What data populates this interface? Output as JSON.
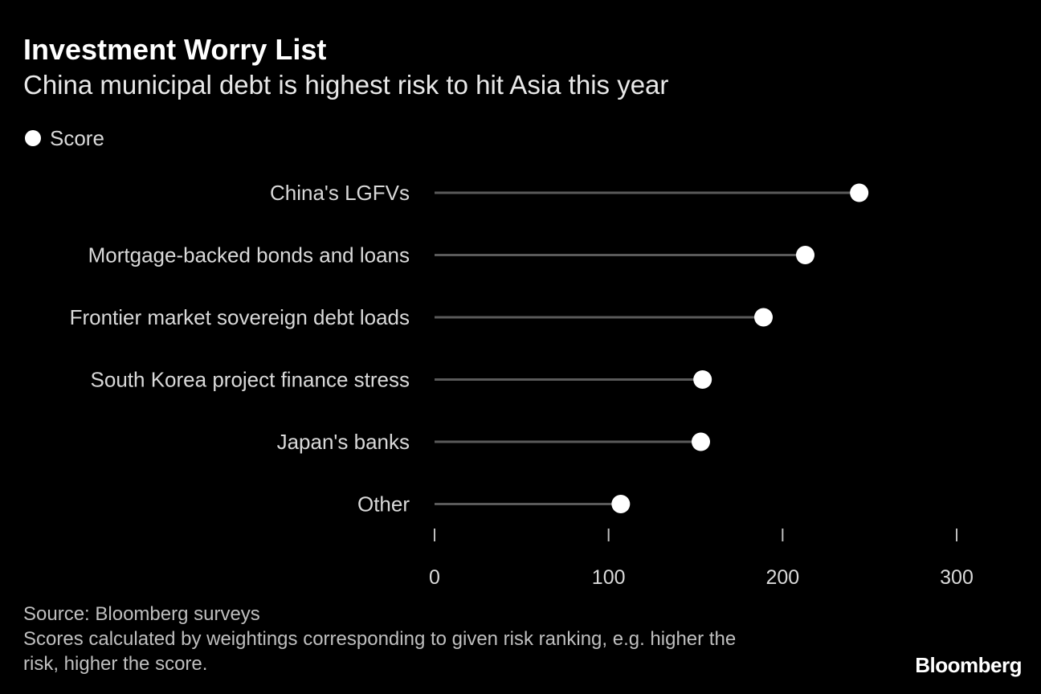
{
  "header": {
    "title": "Investment Worry List",
    "subtitle": "China municipal debt is highest risk to hit Asia this year"
  },
  "legend": {
    "label": "Score",
    "color": "#ffffff"
  },
  "chart_data": {
    "type": "lollipop",
    "orientation": "horizontal",
    "categories": [
      "China's LGFVs",
      "Mortgage-backed bonds and loans",
      "Frontier market sovereign debt loads",
      "South Korea project finance stress",
      "Japan's banks",
      "Other"
    ],
    "series": [
      {
        "name": "Score",
        "values": [
          244,
          213,
          189,
          154,
          153,
          107
        ]
      }
    ],
    "xlim": [
      0,
      300
    ],
    "xticks": [
      0,
      100,
      200,
      300
    ],
    "xlabel": "",
    "ylabel": "",
    "grid": false,
    "colors": {
      "stem": "#5a5a5a",
      "dot": "#ffffff",
      "text": "#d9d9d9",
      "tick": "#bfbfbf"
    }
  },
  "footer": {
    "source": "Source: Bloomberg surveys",
    "note_line1": "Scores calculated by weightings corresponding to given risk ranking, e.g. higher the",
    "note_line2": "risk, higher the score."
  },
  "brand": {
    "name": "Bloomberg"
  }
}
